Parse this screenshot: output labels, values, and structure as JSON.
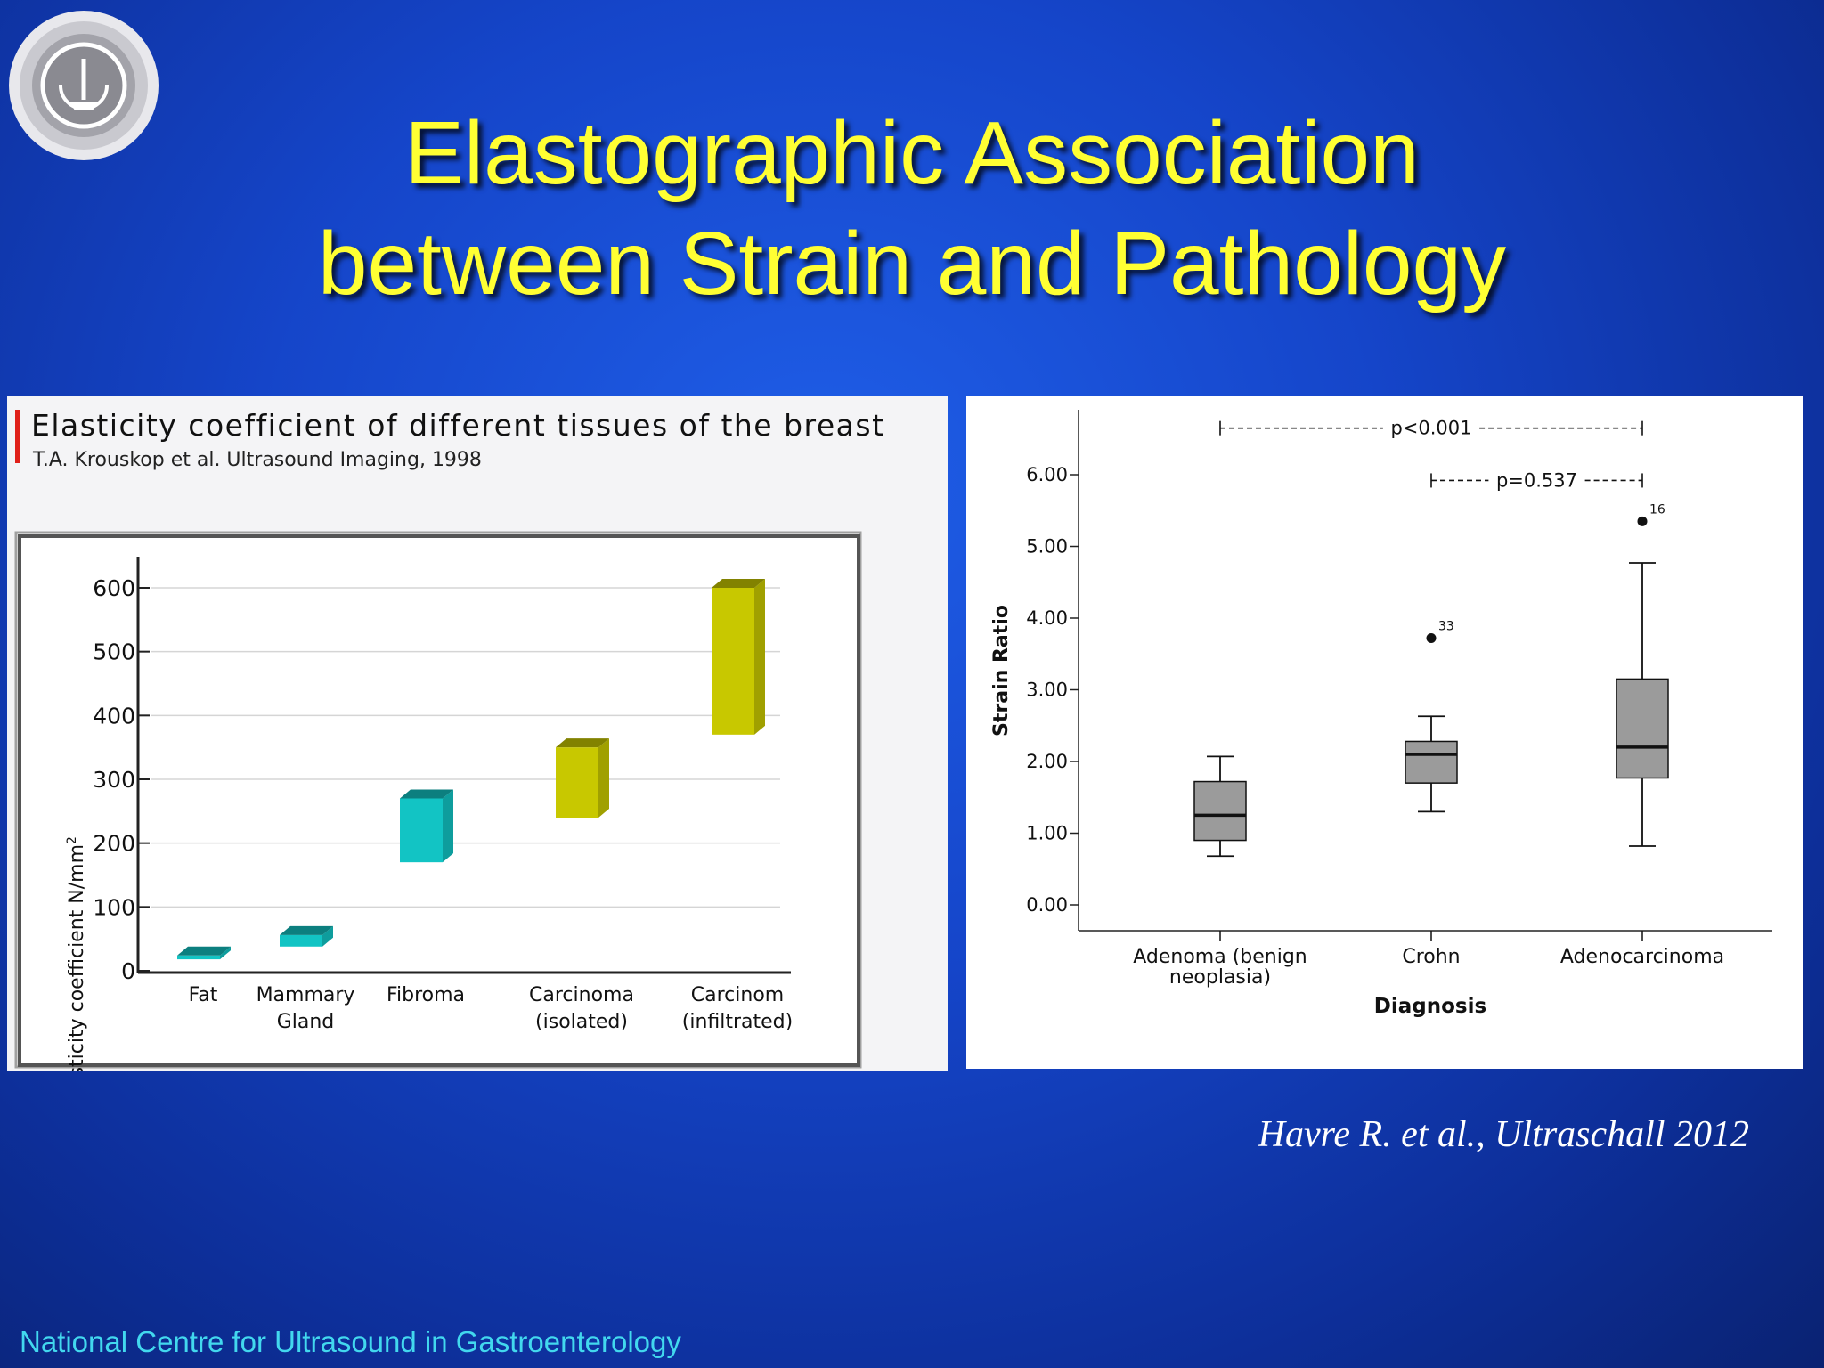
{
  "slide": {
    "title_line1": "Elastographic Association",
    "title_line2": "between Strain and Pathology",
    "citation": "Havre R. et al., Ultraschall 2012",
    "footer": "National Centre for Ultrasound in Gastroenterology",
    "logo_icon": "institution-seal-icon"
  },
  "chart_data": [
    {
      "type": "bar",
      "title": "Elasticity coefficient of different tissues of the breast",
      "subtitle": "T.A. Krouskop et al. Ultrasound Imaging, 1998",
      "ylabel": "Elasticity coefficient N/mm",
      "ylabel_superscript": "2",
      "ylim": [
        0,
        600
      ],
      "yticks": [
        "0",
        "100",
        "200",
        "300",
        "400",
        "500",
        "600"
      ],
      "yticks_values": [
        0,
        100,
        200,
        300,
        400,
        500,
        600
      ],
      "grid": true,
      "categories": [
        {
          "line1": "Fat",
          "line2": ""
        },
        {
          "line1": "Mammary",
          "line2": "Gland"
        },
        {
          "line1": "Fibroma",
          "line2": ""
        },
        {
          "line1": "Carcinoma",
          "line2": "(isolated)"
        },
        {
          "line1": "Carcinom",
          "line2": "(infiltrated)"
        }
      ],
      "ranges": [
        [
          18,
          24
        ],
        [
          38,
          56
        ],
        [
          170,
          270
        ],
        [
          240,
          350
        ],
        [
          370,
          600
        ]
      ],
      "colors": [
        "#12c4c4",
        "#12c4c4",
        "#12c4c4",
        "#c8c800",
        "#c8c800"
      ]
    },
    {
      "type": "boxplot",
      "xlabel": "Diagnosis",
      "ylabel": "Strain Ratio",
      "ylim": [
        0,
        6.5
      ],
      "yticks": [
        "0.00",
        "1.00",
        "2.00",
        "3.00",
        "4.00",
        "5.00",
        "6.00"
      ],
      "yticks_values": [
        0,
        1,
        2,
        3,
        4,
        5,
        6
      ],
      "categories": [
        {
          "line1": "Adenoma (benign",
          "line2": "neoplasia)"
        },
        {
          "line1": "Crohn",
          "line2": ""
        },
        {
          "line1": "Adenocarcinoma",
          "line2": ""
        }
      ],
      "boxes": [
        {
          "min": 0.68,
          "q1": 0.9,
          "median": 1.25,
          "q3": 1.72,
          "max": 2.07
        },
        {
          "min": 1.3,
          "q1": 1.7,
          "median": 2.1,
          "q3": 2.28,
          "max": 2.63
        },
        {
          "min": 0.82,
          "q1": 1.77,
          "median": 2.2,
          "q3": 3.15,
          "max": 4.77
        }
      ],
      "outliers": [
        {
          "category": 1,
          "value": 3.72,
          "label": "33"
        },
        {
          "category": 2,
          "value": 5.35,
          "label": "16"
        }
      ],
      "annotations": [
        {
          "text": "p<0.001",
          "from": 0,
          "to": 2,
          "value": 6.65
        },
        {
          "text": "p=0.537",
          "from": 1,
          "to": 2,
          "value": 5.92
        }
      ],
      "box_color": "#9b9b9b"
    }
  ]
}
